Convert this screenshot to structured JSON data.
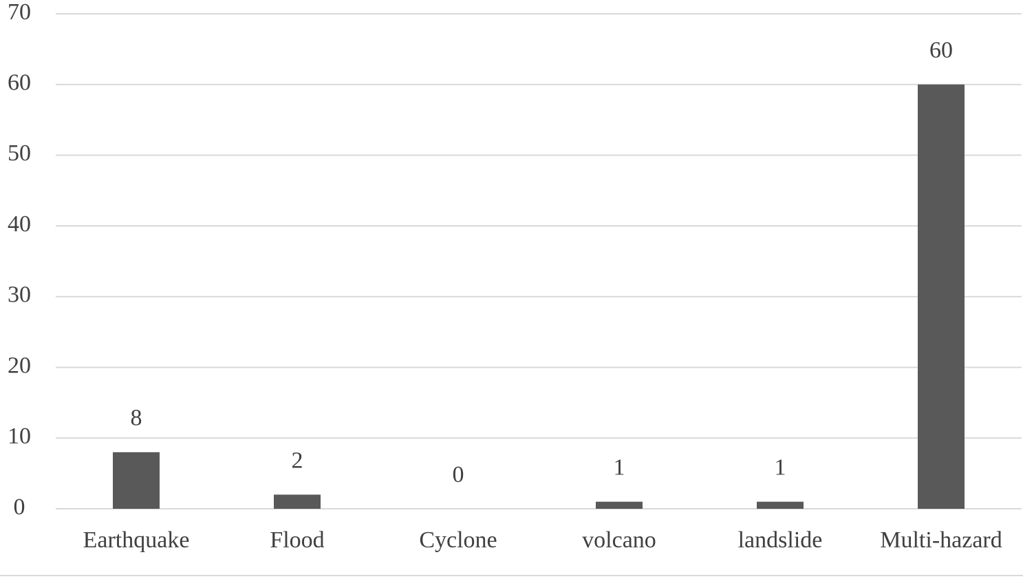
{
  "chart_data": {
    "type": "bar",
    "categories": [
      "Earthquake",
      "Flood",
      "Cyclone",
      "volcano",
      "landslide",
      "Multi-hazard"
    ],
    "values": [
      8,
      2,
      0,
      1,
      1,
      60
    ],
    "color": "#595959",
    "ylim": [
      0,
      70
    ],
    "yticks": [
      0,
      10,
      20,
      30,
      40,
      50,
      60,
      70
    ],
    "grid": true
  }
}
